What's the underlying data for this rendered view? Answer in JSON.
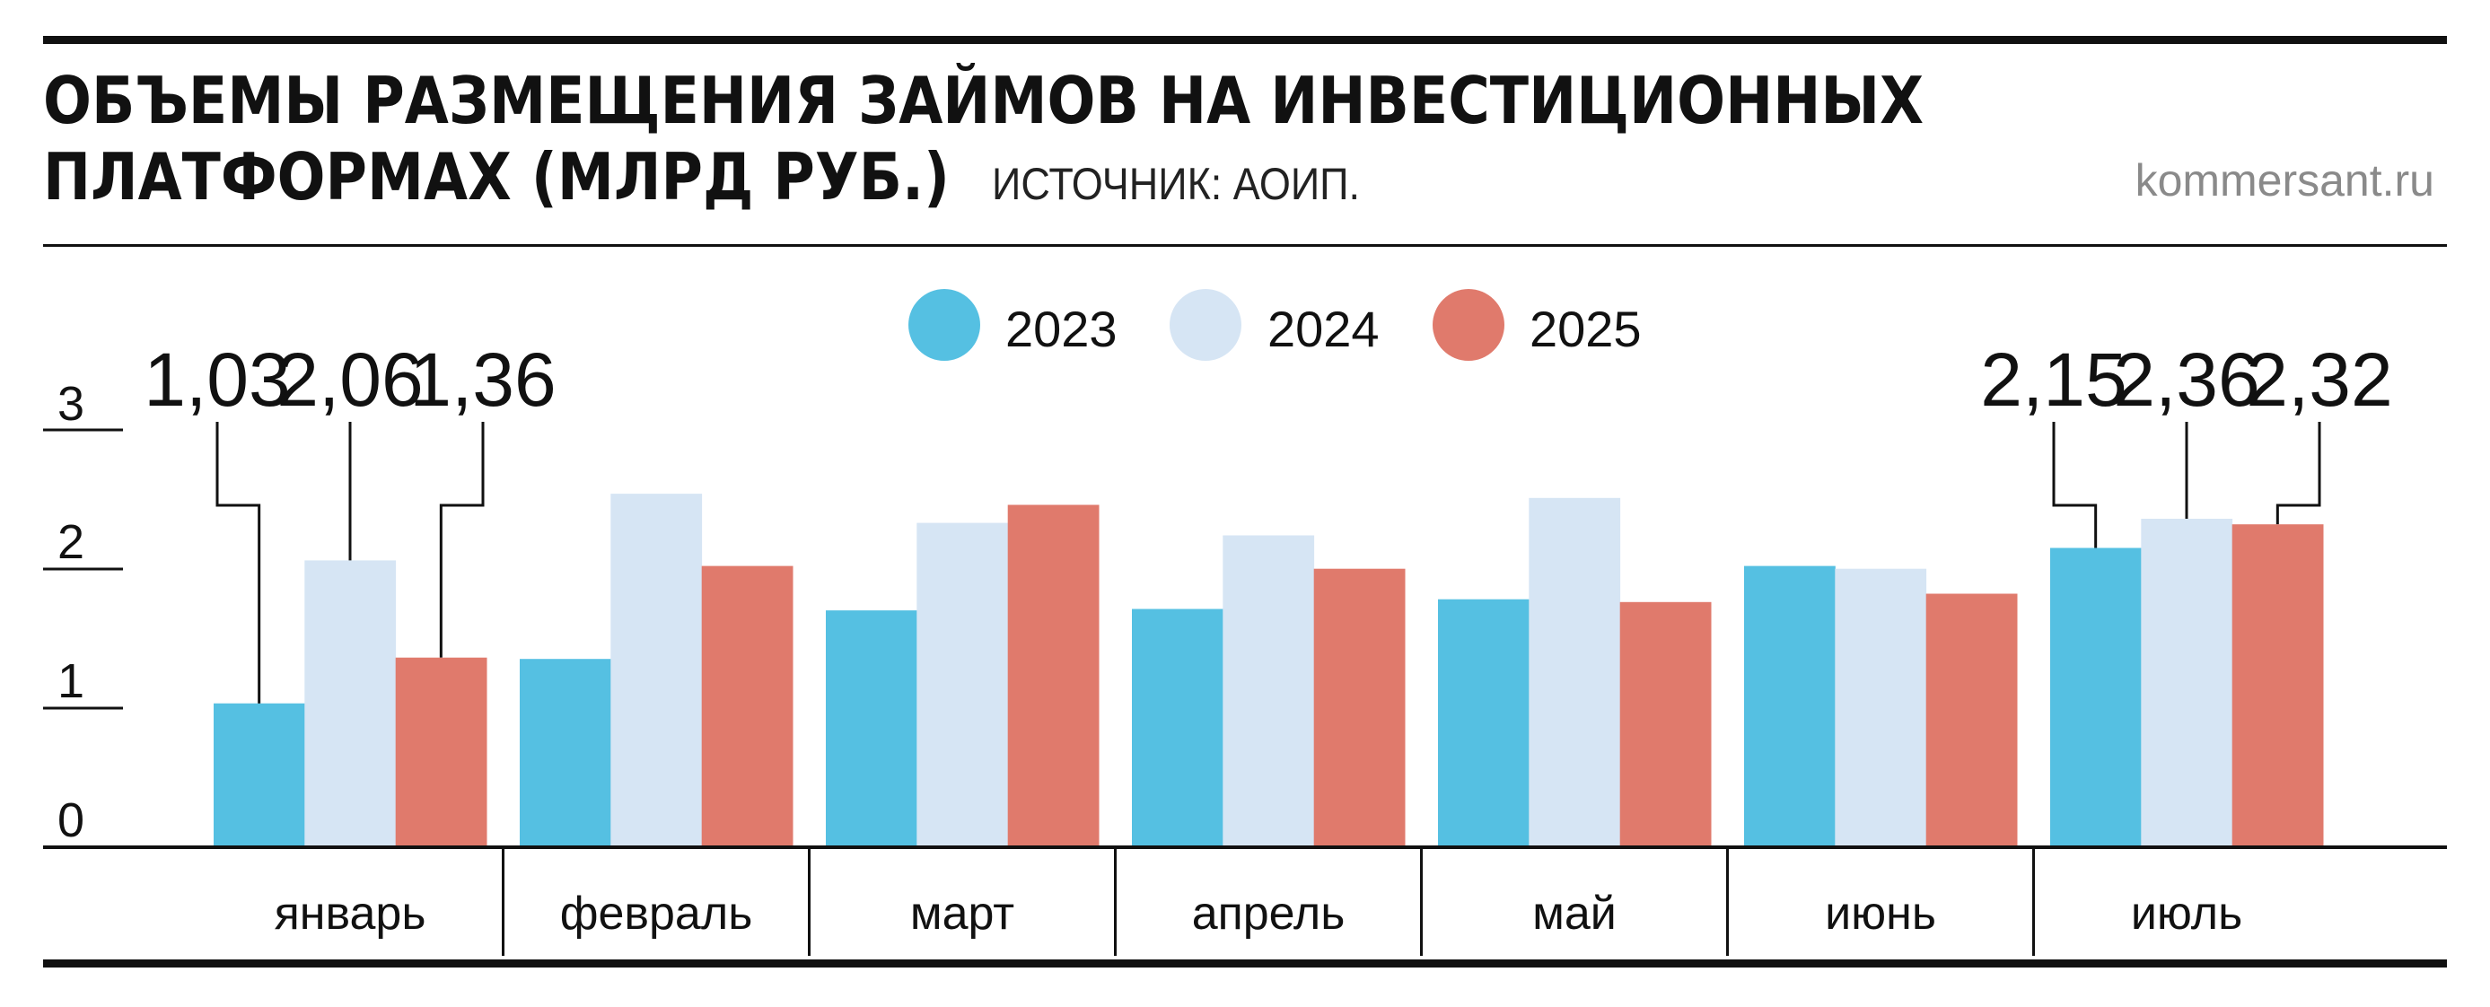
{
  "header": {
    "title_line1": "ОБЪЕМЫ РАЗМЕЩЕНИЯ ЗАЙМОВ НА ИНВЕСТИЦИОННЫХ",
    "title_line2": "ПЛАТФОРМАХ (МЛРД РУБ.)",
    "source": "ИСТОЧНИК: АОИП.",
    "site": "kommersant.ru"
  },
  "colors": {
    "2023": "#55c0e2",
    "2024": "#d6e5f4",
    "2025": "#e07a6c",
    "rule": "#111111"
  },
  "chart_data": {
    "type": "bar",
    "categories": [
      "январь",
      "февраль",
      "март",
      "апрель",
      "май",
      "июнь",
      "июль"
    ],
    "series": [
      {
        "name": "2023",
        "values": [
          1.03,
          1.35,
          1.7,
          1.71,
          1.78,
          2.02,
          2.15
        ]
      },
      {
        "name": "2024",
        "values": [
          2.06,
          2.54,
          2.33,
          2.24,
          2.51,
          2.0,
          2.36
        ]
      },
      {
        "name": "2025",
        "values": [
          1.36,
          2.02,
          2.46,
          2.0,
          1.76,
          1.82,
          2.32
        ]
      }
    ],
    "ylim": [
      0,
      3
    ],
    "yticks": [
      "0",
      "1",
      "2",
      "3"
    ],
    "data_labels": [
      {
        "category": "январь",
        "series": "2023",
        "text": "1,03"
      },
      {
        "category": "январь",
        "series": "2024",
        "text": "2,06"
      },
      {
        "category": "январь",
        "series": "2025",
        "text": "1,36"
      },
      {
        "category": "июль",
        "series": "2023",
        "text": "2,15"
      },
      {
        "category": "июль",
        "series": "2024",
        "text": "2,36"
      },
      {
        "category": "июль",
        "series": "2025",
        "text": "2,32"
      }
    ],
    "legend_position": "top-center",
    "grid": false
  }
}
